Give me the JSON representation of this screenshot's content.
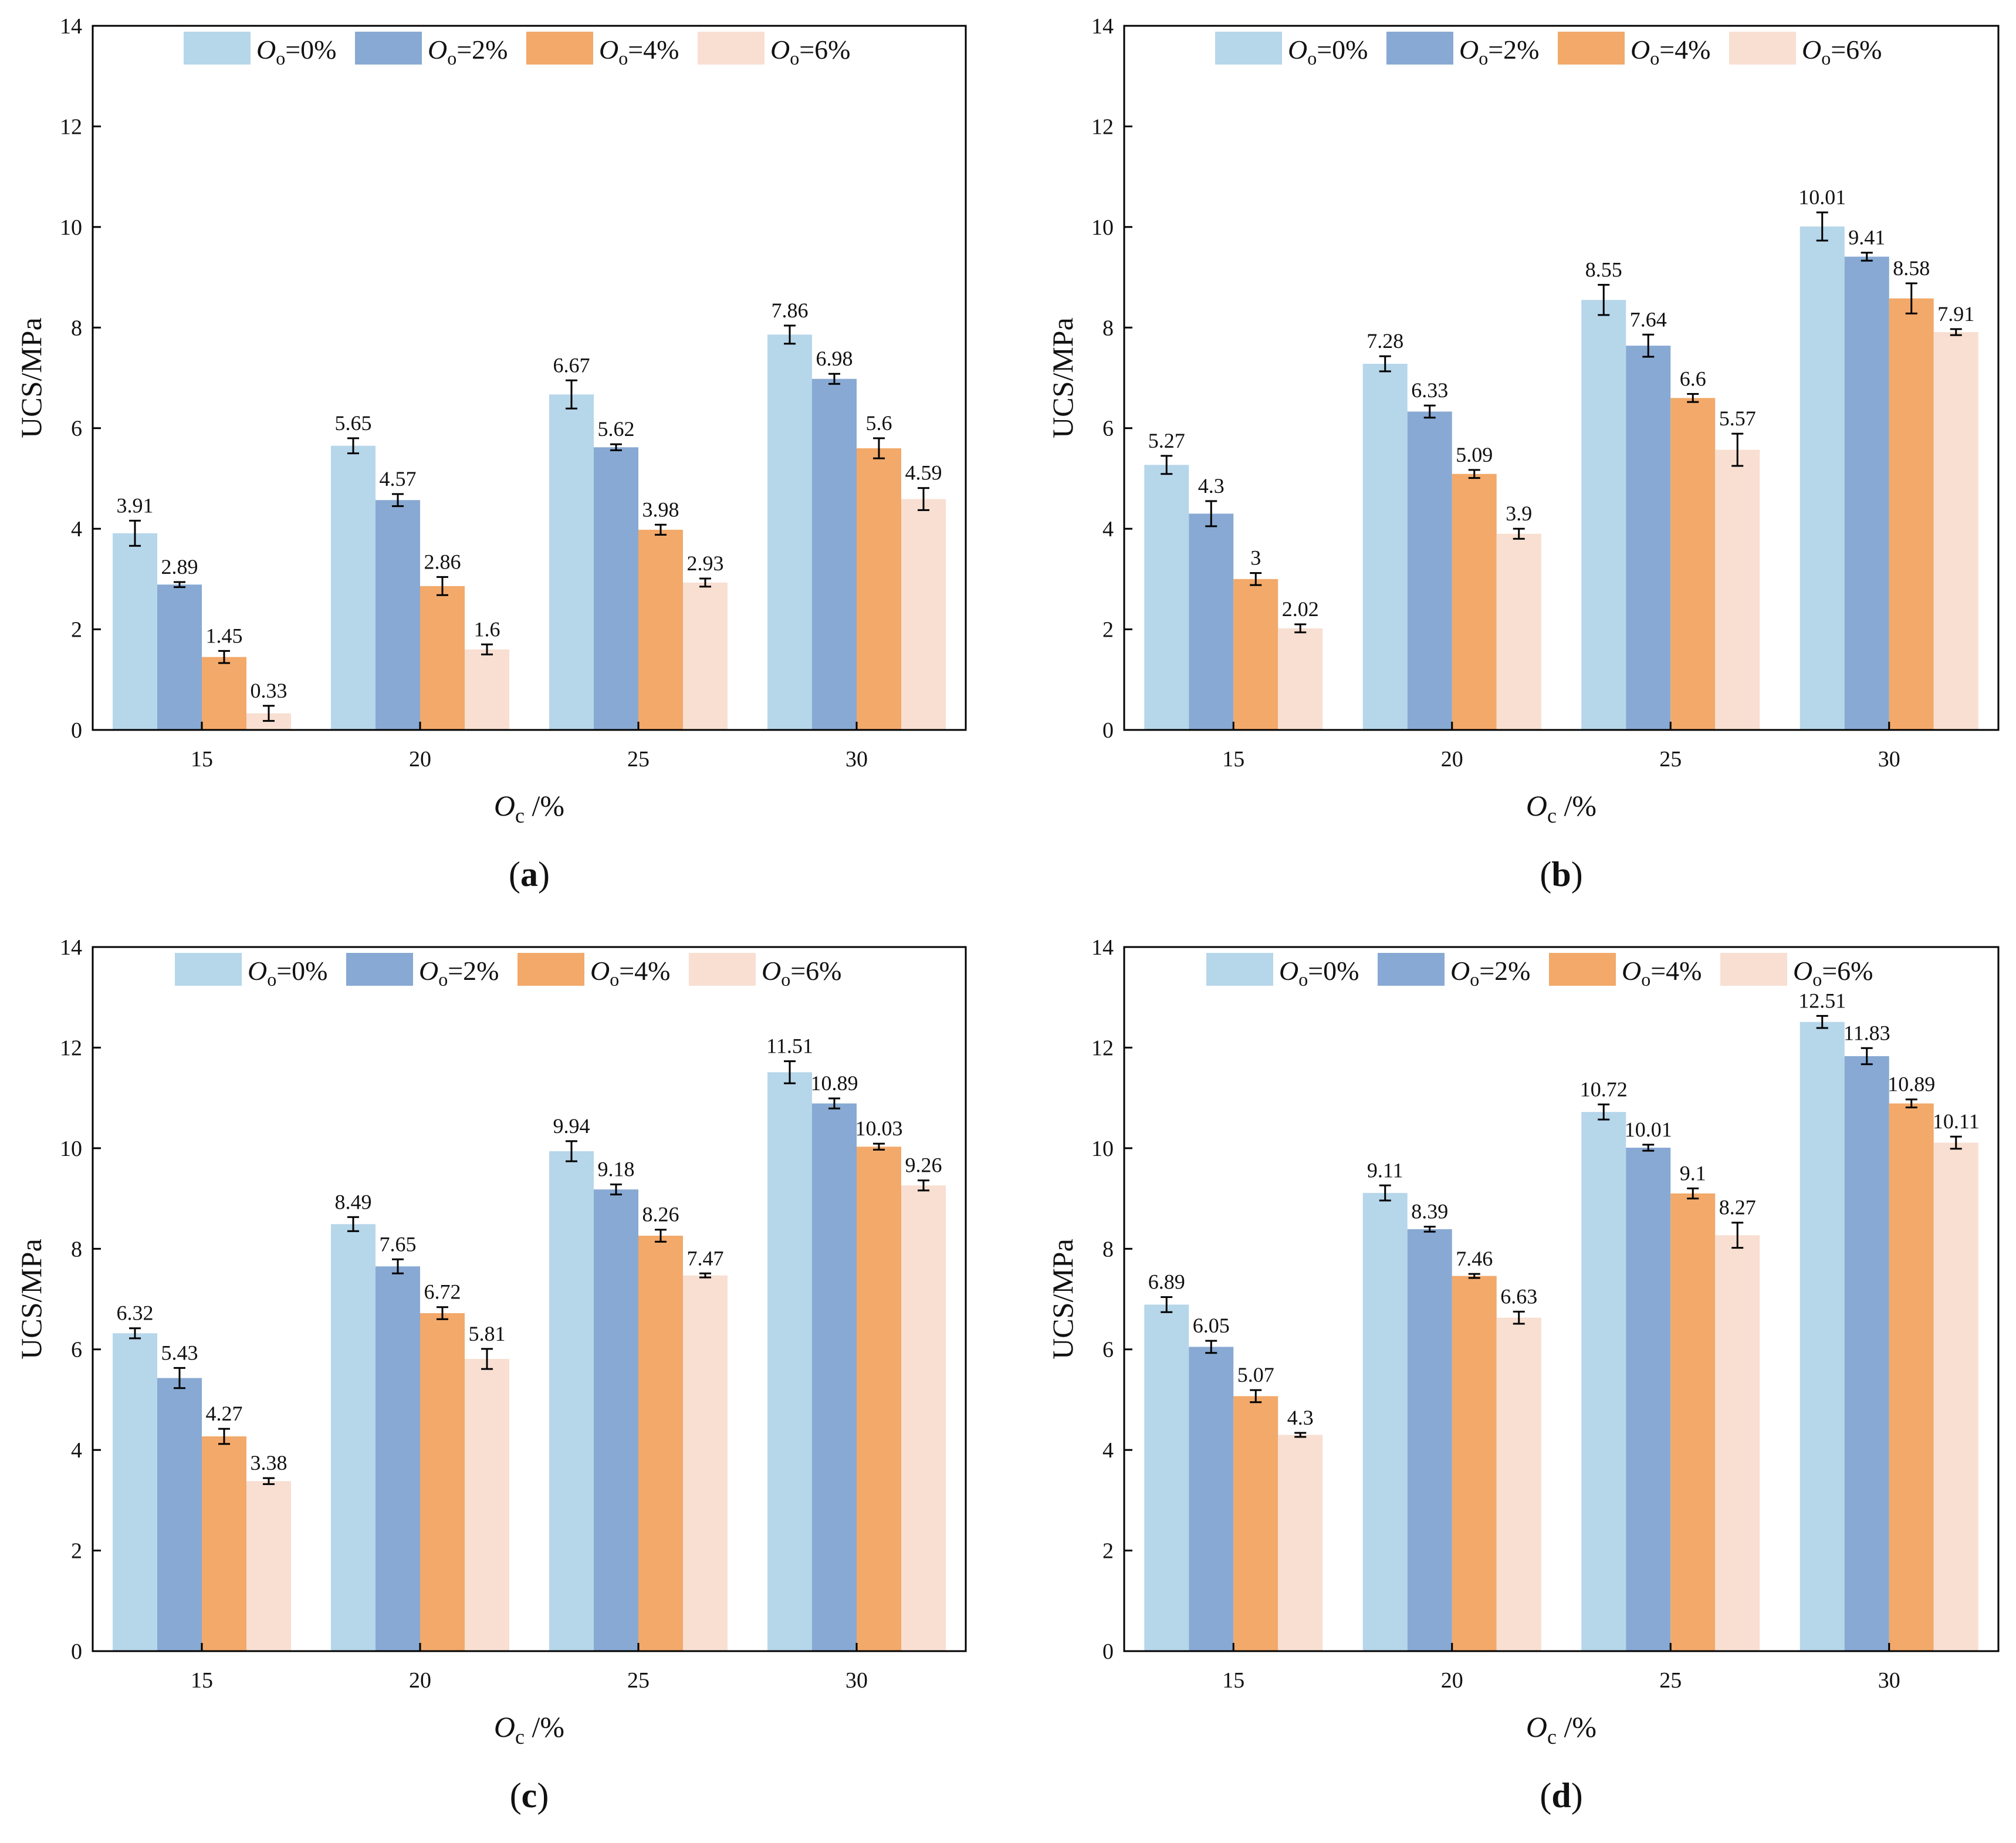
{
  "colors": {
    "Oo=0%": "#b6d6ea",
    "Oo=2%": "#87a9d3",
    "Oo=4%": "#f2a96a",
    "Oo=6%": "#f8dfd2",
    "axis": "#000000",
    "text": "#111111"
  },
  "legend": [
    {
      "key": "Oo=0%",
      "sym": "O",
      "sub": "o",
      "rest": "=0%"
    },
    {
      "key": "Oo=2%",
      "sym": "O",
      "sub": "o",
      "rest": "=2%"
    },
    {
      "key": "Oo=4%",
      "sym": "O",
      "sub": "o",
      "rest": "=4%"
    },
    {
      "key": "Oo=6%",
      "sym": "O",
      "sub": "o",
      "rest": "=6%"
    }
  ],
  "axis_text": {
    "ylabel": "UCS/MPa",
    "xlabel_sym": "O",
    "xlabel_sub": "c",
    "xlabel_unit": " /%"
  },
  "chart_data": [
    {
      "panel": "a",
      "label_open": "(",
      "label_letter": "a",
      "label_close": ")",
      "type": "bar",
      "categories": [
        "15",
        "20",
        "25",
        "30"
      ],
      "ylim": [
        0,
        14
      ],
      "yticks": [
        "0",
        "2",
        "4",
        "6",
        "8",
        "10",
        "12",
        "14"
      ],
      "series": [
        {
          "name": "Oo=0%",
          "values": [
            3.91,
            5.65,
            6.67,
            7.86
          ],
          "labels": [
            "3.91",
            "5.65",
            "6.67",
            "7.86"
          ],
          "errors": [
            0.25,
            0.15,
            0.28,
            0.18
          ]
        },
        {
          "name": "Oo=2%",
          "values": [
            2.89,
            4.57,
            5.62,
            6.98
          ],
          "labels": [
            "2.89",
            "4.57",
            "5.62",
            "6.98"
          ],
          "errors": [
            0.05,
            0.12,
            0.06,
            0.1
          ]
        },
        {
          "name": "Oo=4%",
          "values": [
            1.45,
            2.86,
            3.98,
            5.6
          ],
          "labels": [
            "1.45",
            "2.86",
            "3.98",
            "5.6"
          ],
          "errors": [
            0.12,
            0.18,
            0.1,
            0.2
          ]
        },
        {
          "name": "Oo=6%",
          "values": [
            0.33,
            1.6,
            2.93,
            4.59
          ],
          "labels": [
            "0.33",
            "1.6",
            "2.93",
            "4.59"
          ],
          "errors": [
            0.15,
            0.1,
            0.08,
            0.22
          ]
        }
      ]
    },
    {
      "panel": "b",
      "label_open": "(",
      "label_letter": "b",
      "label_close": ")",
      "type": "bar",
      "categories": [
        "15",
        "20",
        "25",
        "30"
      ],
      "ylim": [
        0,
        14
      ],
      "yticks": [
        "0",
        "2",
        "4",
        "6",
        "8",
        "10",
        "12",
        "14"
      ],
      "series": [
        {
          "name": "Oo=0%",
          "values": [
            5.27,
            7.28,
            8.55,
            10.01
          ],
          "labels": [
            "5.27",
            "7.28",
            "8.55",
            "10.01"
          ],
          "errors": [
            0.18,
            0.15,
            0.3,
            0.28
          ]
        },
        {
          "name": "Oo=2%",
          "values": [
            4.3,
            6.33,
            7.64,
            9.41
          ],
          "labels": [
            "4.3",
            "6.33",
            "7.64",
            "9.41"
          ],
          "errors": [
            0.25,
            0.12,
            0.22,
            0.08
          ]
        },
        {
          "name": "Oo=4%",
          "values": [
            3.0,
            5.09,
            6.6,
            8.58
          ],
          "labels": [
            "3",
            "5.09",
            "6.6",
            "8.58"
          ],
          "errors": [
            0.12,
            0.08,
            0.08,
            0.3
          ]
        },
        {
          "name": "Oo=6%",
          "values": [
            2.02,
            3.9,
            5.57,
            7.91
          ],
          "labels": [
            "2.02",
            "3.9",
            "5.57",
            "7.91"
          ],
          "errors": [
            0.08,
            0.1,
            0.32,
            0.06
          ]
        }
      ]
    },
    {
      "panel": "c",
      "label_open": "(",
      "label_letter": "c",
      "label_close": ")",
      "type": "bar",
      "categories": [
        "15",
        "20",
        "25",
        "30"
      ],
      "ylim": [
        0,
        14
      ],
      "yticks": [
        "0",
        "2",
        "4",
        "6",
        "8",
        "10",
        "12",
        "14"
      ],
      "series": [
        {
          "name": "Oo=0%",
          "values": [
            6.32,
            8.49,
            9.94,
            11.51
          ],
          "labels": [
            "6.32",
            "8.49",
            "9.94",
            "11.51"
          ],
          "errors": [
            0.1,
            0.14,
            0.2,
            0.22
          ]
        },
        {
          "name": "Oo=2%",
          "values": [
            5.43,
            7.65,
            9.18,
            10.89
          ],
          "labels": [
            "5.43",
            "7.65",
            "9.18",
            "10.89"
          ],
          "errors": [
            0.2,
            0.14,
            0.1,
            0.1
          ]
        },
        {
          "name": "Oo=4%",
          "values": [
            4.27,
            6.72,
            8.26,
            10.03
          ],
          "labels": [
            "4.27",
            "6.72",
            "8.26",
            "10.03"
          ],
          "errors": [
            0.15,
            0.12,
            0.12,
            0.06
          ]
        },
        {
          "name": "Oo=6%",
          "values": [
            3.38,
            5.81,
            7.47,
            9.26
          ],
          "labels": [
            "3.38",
            "5.81",
            "7.47",
            "9.26"
          ],
          "errors": [
            0.06,
            0.2,
            0.04,
            0.1
          ]
        }
      ]
    },
    {
      "panel": "d",
      "label_open": "(",
      "label_letter": "d",
      "label_close": ")",
      "type": "bar",
      "categories": [
        "15",
        "20",
        "25",
        "30"
      ],
      "ylim": [
        0,
        14
      ],
      "yticks": [
        "0",
        "2",
        "4",
        "6",
        "8",
        "10",
        "12",
        "14"
      ],
      "series": [
        {
          "name": "Oo=0%",
          "values": [
            6.89,
            9.11,
            10.72,
            12.51
          ],
          "labels": [
            "6.89",
            "9.11",
            "10.72",
            "12.51"
          ],
          "errors": [
            0.15,
            0.15,
            0.15,
            0.12
          ]
        },
        {
          "name": "Oo=2%",
          "values": [
            6.05,
            8.39,
            10.01,
            11.83
          ],
          "labels": [
            "6.05",
            "8.39",
            "10.01",
            "11.83"
          ],
          "errors": [
            0.12,
            0.05,
            0.06,
            0.16
          ]
        },
        {
          "name": "Oo=4%",
          "values": [
            5.07,
            7.46,
            9.1,
            10.89
          ],
          "labels": [
            "5.07",
            "7.46",
            "9.1",
            "10.89"
          ],
          "errors": [
            0.12,
            0.04,
            0.1,
            0.08
          ]
        },
        {
          "name": "Oo=6%",
          "values": [
            4.3,
            6.63,
            8.27,
            10.11
          ],
          "labels": [
            "4.3",
            "6.63",
            "8.27",
            "10.11"
          ],
          "errors": [
            0.04,
            0.12,
            0.25,
            0.12
          ]
        }
      ]
    }
  ]
}
